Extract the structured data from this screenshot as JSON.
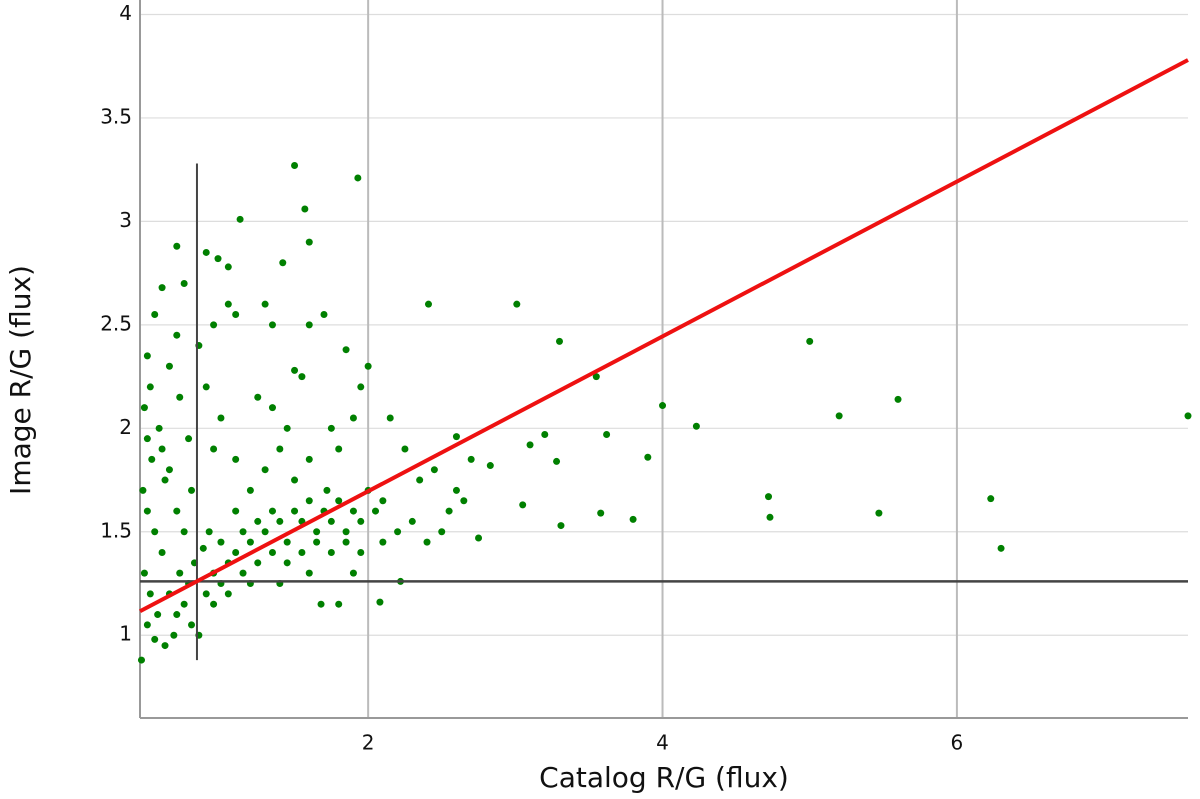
{
  "chart_data": {
    "type": "scatter",
    "xlabel": "Catalog R/G (flux)",
    "ylabel": "Image R/G (flux)",
    "xlim": [
      0.45,
      7.57
    ],
    "ylim": [
      0.6,
      4.07
    ],
    "xticks": [
      2,
      4,
      6
    ],
    "yticks": [
      1,
      1.5,
      2,
      2.5,
      3,
      3.5,
      4
    ],
    "grid": true,
    "points": {
      "color": "#008000",
      "x": [
        1.5,
        1.93,
        1.57,
        1.13,
        1.6,
        2.41,
        3.01,
        3.3,
        5.0,
        3.55,
        4.0,
        5.6,
        5.2,
        4.23,
        7.57,
        3.62,
        3.2,
        3.1,
        3.9,
        2.6,
        2.83,
        3.28,
        4.72,
        6.23,
        3.05,
        3.58,
        3.8,
        4.73,
        5.47,
        3.31,
        6.3,
        2.75,
        2.22,
        1.8,
        2.08,
        0.46,
        0.5,
        0.52,
        0.48,
        0.55,
        0.6,
        0.5,
        0.53,
        0.58,
        0.62,
        0.47,
        0.5,
        0.55,
        0.6,
        0.48,
        0.52,
        0.57,
        0.5,
        0.55,
        0.62,
        0.68,
        0.7,
        0.65,
        0.72,
        0.75,
        0.8,
        0.85,
        0.78,
        0.82,
        0.9,
        0.95,
        1.0,
        1.05,
        1.1,
        1.0,
        0.92,
        0.88,
        1.15,
        1.2,
        1.25,
        1.3,
        1.35,
        1.4,
        1.45,
        1.5,
        1.55,
        1.6,
        1.65,
        1.7,
        1.75,
        1.8,
        1.85,
        1.9,
        1.95,
        2.0,
        2.05,
        2.1,
        2.2,
        2.3,
        2.4,
        2.5,
        2.35,
        2.6,
        2.55,
        2.65,
        1.2,
        1.3,
        1.1,
        1.4,
        1.5,
        1.6,
        1.45,
        1.35,
        1.55,
        1.5,
        1.25,
        1.0,
        0.95,
        0.9,
        0.85,
        0.95,
        1.05,
        1.1,
        0.9,
        0.98,
        1.05,
        0.7,
        0.75,
        0.7,
        0.65,
        1.3,
        1.6,
        1.7,
        1.85,
        1.95,
        2.0,
        1.9,
        1.75,
        1.8,
        2.15,
        1.15,
        1.25,
        1.35,
        1.05,
        0.95,
        1.45,
        1.55,
        1.65,
        1.75,
        1.85,
        1.95,
        2.1,
        1.1,
        1.2,
        1.6,
        1.4,
        0.75,
        0.7,
        0.8,
        0.65,
        0.6,
        0.78,
        0.72,
        1.42,
        1.35,
        2.25,
        2.45,
        2.7,
        1.72,
        1.68,
        1.9
      ],
      "y": [
        3.27,
        3.21,
        3.06,
        3.01,
        2.9,
        2.6,
        2.6,
        2.42,
        2.42,
        2.25,
        2.11,
        2.14,
        2.06,
        2.01,
        2.06,
        1.97,
        1.97,
        1.92,
        1.86,
        1.96,
        1.82,
        1.84,
        1.67,
        1.66,
        1.63,
        1.59,
        1.56,
        1.57,
        1.59,
        1.53,
        1.42,
        1.47,
        1.26,
        1.15,
        1.16,
        0.88,
        2.35,
        2.2,
        2.1,
        2.55,
        2.68,
        1.95,
        1.85,
        2.0,
        1.75,
        1.7,
        1.6,
        1.5,
        1.4,
        1.3,
        1.2,
        1.1,
        1.05,
        0.98,
        0.95,
        1.0,
        1.1,
        1.2,
        1.3,
        1.15,
        1.05,
        1.0,
        1.25,
        1.35,
        1.2,
        1.3,
        1.25,
        1.35,
        1.4,
        1.45,
        1.5,
        1.42,
        1.5,
        1.45,
        1.55,
        1.5,
        1.6,
        1.55,
        1.45,
        1.6,
        1.55,
        1.65,
        1.5,
        1.6,
        1.55,
        1.65,
        1.5,
        1.6,
        1.55,
        1.7,
        1.6,
        1.65,
        1.5,
        1.55,
        1.45,
        1.5,
        1.75,
        1.7,
        1.6,
        1.65,
        1.7,
        1.8,
        1.85,
        1.9,
        1.75,
        1.85,
        2.0,
        2.1,
        2.25,
        2.28,
        2.15,
        2.05,
        1.9,
        2.2,
        2.4,
        2.5,
        2.6,
        2.55,
        2.85,
        2.82,
        2.78,
        2.88,
        2.7,
        2.45,
        2.3,
        2.6,
        2.5,
        2.55,
        2.38,
        2.2,
        2.3,
        2.05,
        2.0,
        1.9,
        2.05,
        1.3,
        1.35,
        1.4,
        1.2,
        1.15,
        1.35,
        1.4,
        1.45,
        1.4,
        1.45,
        1.4,
        1.45,
        1.6,
        1.25,
        1.3,
        1.25,
        1.5,
        1.6,
        1.7,
        1.8,
        1.9,
        1.95,
        2.15,
        2.8,
        2.5,
        1.9,
        1.8,
        1.85,
        1.7,
        1.15,
        1.3
      ]
    },
    "fit_line": {
      "color": "#ee1111",
      "x": [
        0.45,
        7.57
      ],
      "y": [
        1.116,
        3.78
      ]
    },
    "reference_lines": {
      "color": "#444444",
      "vertical_x": 0.837,
      "vertical_y": [
        0.88,
        3.28
      ],
      "horizontal_y": 1.26
    }
  }
}
